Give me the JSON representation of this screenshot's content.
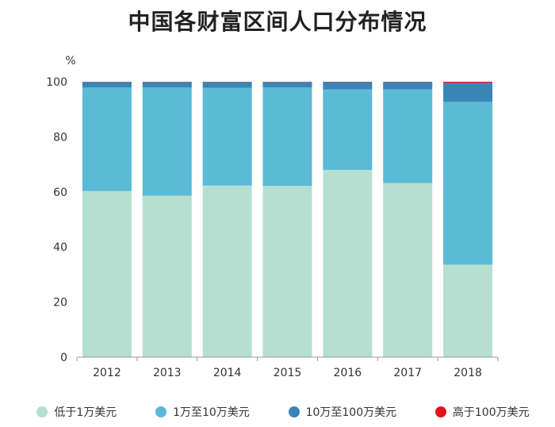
{
  "chart_data": {
    "type": "bar",
    "stacked": true,
    "title": "中国各财富区间人口分布情况",
    "ylabel": "%",
    "xlabel": "",
    "ylim": [
      0,
      100
    ],
    "yticks": [
      0,
      20,
      40,
      60,
      80,
      100
    ],
    "categories": [
      "2012",
      "2013",
      "2014",
      "2015",
      "2016",
      "2017",
      "2018"
    ],
    "series": [
      {
        "name": "低于1万美元",
        "color": "#b5dfd1",
        "values": [
          60.3,
          58.6,
          62.3,
          62.2,
          68.0,
          63.2,
          33.6
        ]
      },
      {
        "name": "1万至10万美元",
        "color": "#5bbad6",
        "values": [
          37.6,
          39.3,
          35.5,
          35.7,
          29.2,
          34.0,
          59.1
        ]
      },
      {
        "name": "10万至100万美元",
        "color": "#3a85b8",
        "values": [
          2.0,
          2.0,
          2.1,
          2.0,
          2.7,
          2.7,
          6.9
        ]
      },
      {
        "name": "高于100万美元",
        "color": "#e0161b",
        "values": [
          0.1,
          0.1,
          0.1,
          0.1,
          0.1,
          0.1,
          0.4
        ]
      }
    ],
    "legend_position": "bottom",
    "grid": false
  }
}
